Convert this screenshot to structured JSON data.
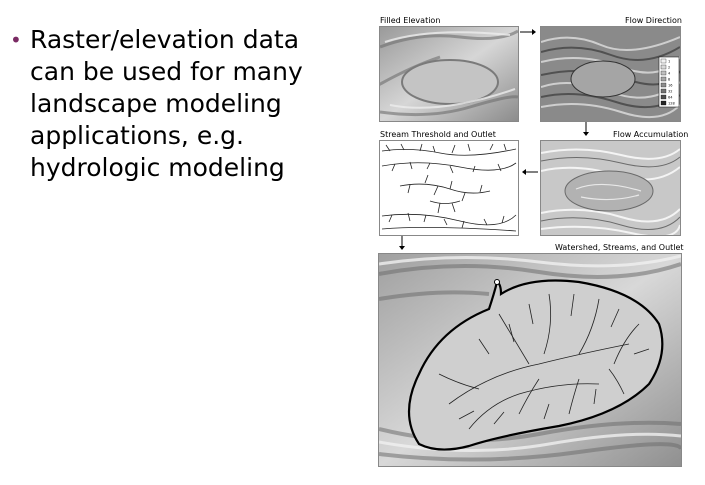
{
  "bullet": {
    "marker": "•",
    "text": "Raster/elevation data can be used for many landscape modeling applications, e.g. hydrologic modeling"
  },
  "figure": {
    "panels": [
      {
        "label": "Filled Elevation"
      },
      {
        "label": "Flow Direction"
      },
      {
        "label": "Stream Threshold and Outlet"
      },
      {
        "label": "Flow Accumulation"
      },
      {
        "label": "Watershed, Streams, and Outlet"
      }
    ],
    "legend_values": [
      "1",
      "2",
      "4",
      "8",
      "16",
      "32",
      "64",
      "128"
    ]
  }
}
